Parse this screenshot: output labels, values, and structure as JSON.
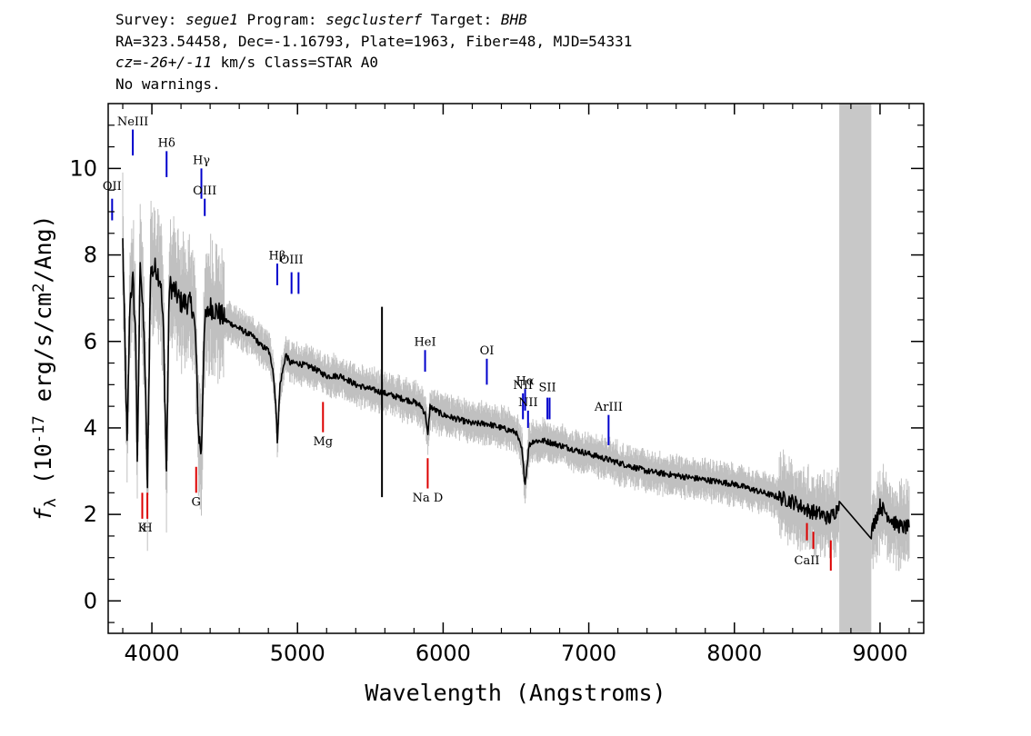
{
  "header": {
    "line1_survey_label": "Survey: ",
    "line1_survey": "segue1",
    "line1_program_label": " Program: ",
    "line1_program": "segclusterf",
    "line1_target_label": " Target: ",
    "line1_target": "BHB",
    "line2": "RA=323.54458, Dec=-1.16793, Plate=1963, Fiber=48, MJD=54331",
    "line3_cz": "cz=-26+/-11",
    "line3_rest": " km/s Class=STAR A0",
    "line4": "No warnings."
  },
  "chart_data": {
    "type": "line",
    "xlabel": "Wavelength (Angstroms)",
    "ylabel": "f_λ (10^-17 erg/s/cm^2/Ang)",
    "xlim": [
      3700,
      9300
    ],
    "ylim": [
      -0.75,
      11.5
    ],
    "xticks": [
      4000,
      5000,
      6000,
      7000,
      8000,
      9000
    ],
    "yticks": [
      0,
      2,
      4,
      6,
      8,
      10
    ],
    "grid": false,
    "masked_region": [
      8720,
      8940
    ],
    "colors": {
      "flux": "#000000",
      "error_band": "#c0c0c0",
      "emission": "#0000cc",
      "absorption": "#dd0000",
      "mask": "#c8c8c8"
    },
    "series": [
      {
        "x": [
          3800,
          3830,
          3850,
          3870,
          3890,
          3900,
          3920,
          3950,
          3970,
          3990,
          4030,
          4060,
          4080,
          4100,
          4120,
          4150,
          4200,
          4250,
          4280,
          4300,
          4320,
          4340,
          4360,
          4400,
          4450,
          4500,
          4600,
          4700,
          4750,
          4800,
          4830,
          4850,
          4861,
          4880,
          4920,
          4950,
          5000,
          5100,
          5200,
          5300,
          5400,
          5500,
          5600,
          5700,
          5800,
          5850,
          5880,
          5895,
          5910,
          5950,
          6000,
          6100,
          6200,
          6300,
          6400,
          6500,
          6540,
          6563,
          6590,
          6620,
          6700,
          6800,
          6900,
          7000,
          7200,
          7400,
          7600,
          7800,
          8000,
          8200,
          8400,
          8500,
          8600,
          8650,
          8700,
          8720,
          8940,
          8960,
          9000,
          9050,
          9100,
          9150,
          9200
        ],
        "y": [
          8.3,
          3.6,
          7.0,
          7.4,
          6.0,
          3.0,
          8.0,
          5.8,
          2.6,
          7.6,
          7.7,
          7.4,
          6.2,
          3.0,
          7.3,
          7.2,
          6.9,
          6.9,
          6.8,
          6.1,
          3.9,
          3.4,
          6.4,
          6.8,
          6.7,
          6.5,
          6.3,
          6.1,
          5.9,
          5.8,
          5.4,
          4.6,
          3.7,
          5.0,
          5.7,
          5.5,
          5.5,
          5.4,
          5.2,
          5.2,
          5.0,
          4.9,
          4.8,
          4.7,
          4.6,
          4.5,
          4.3,
          3.8,
          4.5,
          4.4,
          4.3,
          4.2,
          4.1,
          4.1,
          4.0,
          3.9,
          3.5,
          2.7,
          3.6,
          3.7,
          3.7,
          3.6,
          3.5,
          3.4,
          3.2,
          3.0,
          2.9,
          2.8,
          2.7,
          2.5,
          2.3,
          2.1,
          2.0,
          1.9,
          2.1,
          2.3,
          1.6,
          1.8,
          2.2,
          2.0,
          1.8,
          1.7,
          1.7
        ]
      }
    ],
    "lines": [
      {
        "name": "OII",
        "wave": 3727,
        "kind": "emission",
        "y1": 8.8,
        "y2": 9.3,
        "label_y": 9.5
      },
      {
        "name": "NeIII",
        "wave": 3869,
        "kind": "emission",
        "y1": 10.3,
        "y2": 10.9,
        "label_y": 11.0
      },
      {
        "name": "Hδ",
        "wave": 4101,
        "kind": "emission",
        "y1": 9.8,
        "y2": 10.4,
        "label_y": 10.5
      },
      {
        "name": "Hγ",
        "wave": 4340,
        "kind": "emission",
        "y1": 9.3,
        "y2": 10.0,
        "label_y": 10.1
      },
      {
        "name": "OIII",
        "wave": 4363,
        "kind": "emission",
        "y1": 8.9,
        "y2": 9.3,
        "label_y": 9.4
      },
      {
        "name": "Hβ",
        "wave": 4861,
        "kind": "emission",
        "y1": 7.3,
        "y2": 7.8,
        "label_y": 7.9
      },
      {
        "name": "OIII",
        "wave": 4959,
        "kind": "emission",
        "y1": 7.1,
        "y2": 7.6,
        "label_y": 7.8
      },
      {
        "name": "",
        "wave": 5007,
        "kind": "emission",
        "y1": 7.1,
        "y2": 7.6,
        "label_y": 7.8
      },
      {
        "name": "HeI",
        "wave": 5876,
        "kind": "emission",
        "y1": 5.3,
        "y2": 5.8,
        "label_y": 5.9
      },
      {
        "name": "OI",
        "wave": 6300,
        "kind": "emission",
        "y1": 5.0,
        "y2": 5.6,
        "label_y": 5.7
      },
      {
        "name": "NII",
        "wave": 6548,
        "kind": "emission",
        "y1": 4.2,
        "y2": 4.8,
        "label_y": 4.9
      },
      {
        "name": "Hα",
        "wave": 6563,
        "kind": "emission",
        "y1": 4.4,
        "y2": 4.9,
        "label_y": 5.0
      },
      {
        "name": "NII",
        "wave": 6583,
        "kind": "emission",
        "y1": 4.0,
        "y2": 4.4,
        "label_y": 4.5
      },
      {
        "name": "SII",
        "wave": 6716,
        "kind": "emission",
        "y1": 4.2,
        "y2": 4.7,
        "label_y": 4.85
      },
      {
        "name": "",
        "wave": 6731,
        "kind": "emission",
        "y1": 4.2,
        "y2": 4.7,
        "label_y": 4.85
      },
      {
        "name": "ArIII",
        "wave": 7136,
        "kind": "emission",
        "y1": 3.6,
        "y2": 4.3,
        "label_y": 4.4
      },
      {
        "name": "K",
        "wave": 3934,
        "kind": "absorption",
        "y1": 1.9,
        "y2": 2.5,
        "label_y": 1.6
      },
      {
        "name": "H",
        "wave": 3969,
        "kind": "absorption",
        "y1": 1.9,
        "y2": 2.5,
        "label_y": 1.6
      },
      {
        "name": "G",
        "wave": 4304,
        "kind": "absorption",
        "y1": 2.5,
        "y2": 3.1,
        "label_y": 2.2
      },
      {
        "name": "Mg",
        "wave": 5175,
        "kind": "absorption",
        "y1": 3.9,
        "y2": 4.6,
        "label_y": 3.6
      },
      {
        "name": "Na D",
        "wave": 5894,
        "kind": "absorption",
        "y1": 2.6,
        "y2": 3.3,
        "label_y": 2.3
      },
      {
        "name": "CaII",
        "wave": 8498,
        "kind": "absorption",
        "y1": 1.4,
        "y2": 1.8,
        "label_y": 0.85
      },
      {
        "name": "",
        "wave": 8542,
        "kind": "absorption",
        "y1": 1.2,
        "y2": 1.6,
        "label_y": 0.85
      },
      {
        "name": "",
        "wave": 8662,
        "kind": "absorption",
        "y1": 0.7,
        "y2": 1.4,
        "label_y": 0.85
      }
    ]
  }
}
